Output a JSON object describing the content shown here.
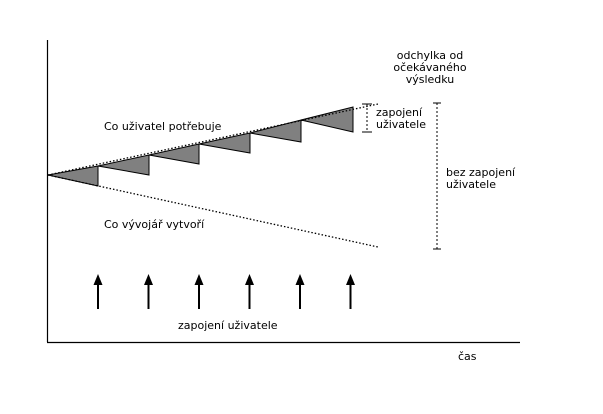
{
  "labels": {
    "user_needs": "Co uživatel potřebuje",
    "developer_creates": "Co vývojář vytvoří",
    "user_involvement_bottom": "zapojení uživatele",
    "time_axis": "čas",
    "deviation_heading": [
      "odchylka od",
      "očekávaného",
      "výsledku"
    ],
    "with_involvement": [
      "zapojení",
      "uživatele"
    ],
    "without_involvement": [
      "bez zapojení",
      "uživatele"
    ]
  },
  "involvement_arrow_count": 6,
  "colors": {
    "triangle_fill": "#808080",
    "line": "#000000"
  }
}
